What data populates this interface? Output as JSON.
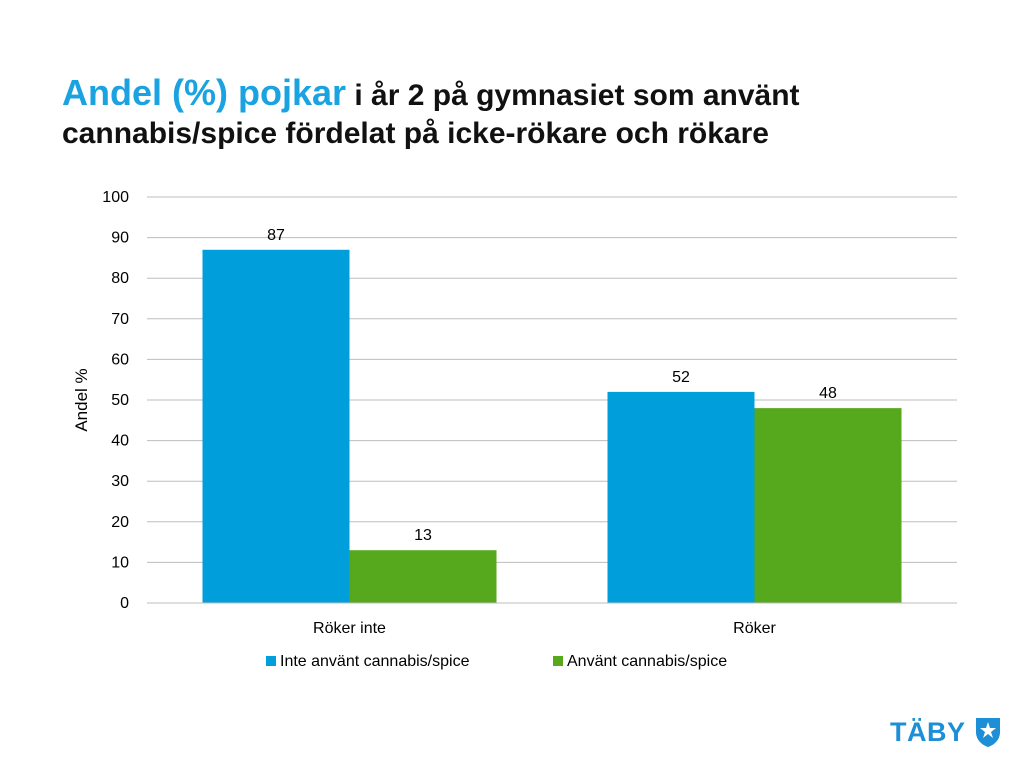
{
  "slide": {
    "title_accent": "Andel (%) pojkar",
    "title_rest": " i år 2 på gymnasiet som använt cannabis/spice fördelat på icke-rökare och rökare"
  },
  "chart_data": {
    "type": "bar",
    "categories": [
      "Röker inte",
      "Röker"
    ],
    "series": [
      {
        "name": "Inte använt cannabis/spice",
        "values": [
          87,
          52
        ],
        "color": "#009fdb"
      },
      {
        "name": "Använt cannabis/spice",
        "values": [
          13,
          48
        ],
        "color": "#56a81d"
      }
    ],
    "ylabel": "Andel %",
    "ylim": [
      0,
      100
    ],
    "yticks": [
      0,
      10,
      20,
      30,
      40,
      50,
      60,
      70,
      80,
      90,
      100
    ],
    "grid": true,
    "legend": "bottom",
    "data_labels": true
  },
  "logo": {
    "text": "TÄBY",
    "icon": "taby-shield-icon",
    "color": "#1c8fd6"
  }
}
